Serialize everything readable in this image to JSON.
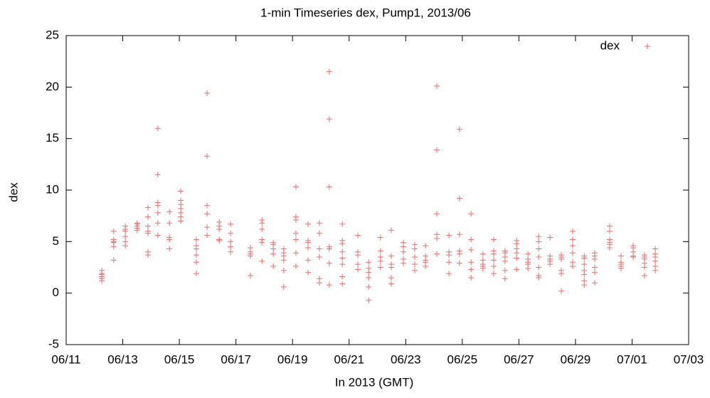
{
  "chart_data": {
    "type": "scatter",
    "title": "1-min Timeseries dex, Pump1, 2013/06",
    "x_label": "In 2013 (GMT)",
    "y_label": "dex",
    "xlim": [
      11,
      33
    ],
    "xticks": [
      {
        "value": 11,
        "label": "06/11"
      },
      {
        "value": 13,
        "label": "06/13"
      },
      {
        "value": 15,
        "label": "06/15"
      },
      {
        "value": 17,
        "label": "06/17"
      },
      {
        "value": 19,
        "label": "06/19"
      },
      {
        "value": 21,
        "label": "06/21"
      },
      {
        "value": 23,
        "label": "06/23"
      },
      {
        "value": 25,
        "label": "06/25"
      },
      {
        "value": 27,
        "label": "06/27"
      },
      {
        "value": 29,
        "label": "06/29"
      },
      {
        "value": 31,
        "label": "07/01"
      },
      {
        "value": 33,
        "label": "07/03"
      }
    ],
    "ylim": [
      -5,
      25
    ],
    "yticks": [
      -5,
      0,
      5,
      10,
      15,
      20,
      25
    ],
    "legend": "top-right",
    "x": [
      12.26,
      12.26,
      12.26,
      12.26,
      12.26,
      12.26,
      12.68,
      12.68,
      12.68,
      12.68,
      12.68,
      12.68,
      13.09,
      13.09,
      13.09,
      13.09,
      13.09,
      13.09,
      13.51,
      13.51,
      13.51,
      13.51,
      13.51,
      13.89,
      13.89,
      13.89,
      13.89,
      13.89,
      13.89,
      13.89,
      14.24,
      14.24,
      14.24,
      14.24,
      14.24,
      14.24,
      14.24,
      14.65,
      14.65,
      14.65,
      14.65,
      14.65,
      15.05,
      15.05,
      15.05,
      15.05,
      15.05,
      15.05,
      15.05,
      15.6,
      15.6,
      15.6,
      15.6,
      15.6,
      15.6,
      15.98,
      15.98,
      15.98,
      15.98,
      15.98,
      15.98,
      16.41,
      16.41,
      16.41,
      16.41,
      16.41,
      16.81,
      16.81,
      16.81,
      16.81,
      16.81,
      17.51,
      17.51,
      17.51,
      17.51,
      17.51,
      17.92,
      17.92,
      17.92,
      17.92,
      17.92,
      17.92,
      18.32,
      18.32,
      18.32,
      18.32,
      18.32,
      18.69,
      18.69,
      18.69,
      18.69,
      18.69,
      18.69,
      19.12,
      19.12,
      19.12,
      19.12,
      19.12,
      19.12,
      19.12,
      19.55,
      19.55,
      19.55,
      19.55,
      19.55,
      19.55,
      19.95,
      19.95,
      19.95,
      19.95,
      19.95,
      19.95,
      20.3,
      20.3,
      20.3,
      20.3,
      20.3,
      20.3,
      20.3,
      20.76,
      20.76,
      20.76,
      20.76,
      20.76,
      20.76,
      20.76,
      20.76,
      21.31,
      21.31,
      21.31,
      21.31,
      21.31,
      21.69,
      21.69,
      21.69,
      21.69,
      21.69,
      21.69,
      22.11,
      22.11,
      22.11,
      22.11,
      22.11,
      22.49,
      22.49,
      22.49,
      22.49,
      22.49,
      22.49,
      22.92,
      22.92,
      22.92,
      22.92,
      22.92,
      23.32,
      23.32,
      23.32,
      23.32,
      23.32,
      23.7,
      23.7,
      23.7,
      23.7,
      23.7,
      24.1,
      24.1,
      24.1,
      24.1,
      24.1,
      24.1,
      24.53,
      24.53,
      24.53,
      24.53,
      24.53,
      24.9,
      24.9,
      24.9,
      24.9,
      24.9,
      24.9,
      25.31,
      25.31,
      25.31,
      25.31,
      25.31,
      25.31,
      25.73,
      25.73,
      25.73,
      25.73,
      25.73,
      26.11,
      26.11,
      26.11,
      26.11,
      26.11,
      26.11,
      26.51,
      26.51,
      26.51,
      26.51,
      26.51,
      26.51,
      26.92,
      26.92,
      26.92,
      26.92,
      26.92,
      26.92,
      27.32,
      27.32,
      27.32,
      27.32,
      27.32,
      27.7,
      27.7,
      27.7,
      27.7,
      27.7,
      27.7,
      27.7,
      28.1,
      28.1,
      28.1,
      28.1,
      28.1,
      28.5,
      28.5,
      28.5,
      28.5,
      28.5,
      28.5,
      28.9,
      28.9,
      28.9,
      28.9,
      28.9,
      28.9,
      29.31,
      29.31,
      29.31,
      29.31,
      29.31,
      29.31,
      29.31,
      29.68,
      29.68,
      29.68,
      29.68,
      29.68,
      29.68,
      30.21,
      30.21,
      30.21,
      30.21,
      30.21,
      30.21,
      30.61,
      30.61,
      30.61,
      30.61,
      30.61,
      31.04,
      31.04,
      31.04,
      31.04,
      31.04,
      31.44,
      31.44,
      31.44,
      31.44,
      31.44,
      31.44,
      31.82,
      31.82,
      31.82,
      31.82,
      31.82,
      31.82
    ],
    "series": [
      {
        "name": "dex",
        "color": "#f26a6a",
        "values": [
          2.2,
          1.9,
          1.6,
          1.4,
          1.2,
          1.8,
          6.0,
          5.2,
          4.9,
          4.5,
          3.2,
          5.0,
          6.5,
          6.0,
          5.5,
          5.0,
          4.6,
          6.2,
          6.8,
          6.5,
          6.3,
          6.1,
          6.7,
          8.3,
          6.5,
          6.0,
          5.8,
          4.0,
          3.7,
          7.4,
          16.0,
          11.5,
          8.8,
          8.5,
          7.8,
          6.8,
          5.6,
          7.9,
          6.8,
          5.4,
          5.2,
          4.3,
          9.9,
          9.0,
          8.6,
          8.2,
          7.8,
          7.4,
          7.0,
          5.2,
          4.6,
          4.3,
          3.7,
          3.0,
          1.9,
          19.4,
          13.3,
          8.5,
          7.7,
          6.4,
          5.6,
          6.9,
          6.5,
          6.2,
          5.2,
          5.1,
          6.7,
          5.8,
          5.0,
          4.5,
          4.0,
          4.4,
          4.0,
          3.8,
          3.6,
          1.7,
          7.1,
          6.8,
          6.2,
          5.2,
          4.9,
          3.1,
          4.9,
          4.7,
          4.3,
          3.8,
          2.6,
          4.3,
          3.9,
          3.6,
          3.2,
          2.2,
          0.6,
          10.3,
          7.4,
          7.1,
          5.8,
          5.2,
          3.9,
          2.6,
          6.7,
          5.1,
          4.9,
          4.4,
          3.2,
          2.0,
          6.8,
          5.8,
          4.3,
          3.5,
          1.4,
          1.0,
          21.5,
          16.9,
          10.3,
          4.5,
          4.3,
          2.9,
          0.8,
          6.7,
          5.1,
          4.8,
          4.0,
          3.4,
          2.8,
          1.6,
          0.9,
          5.6,
          4.0,
          3.7,
          2.8,
          2.3,
          3.0,
          2.4,
          2.0,
          1.5,
          0.6,
          -0.7,
          5.4,
          4.1,
          3.5,
          3.1,
          2.5,
          6.1,
          3.6,
          2.8,
          2.5,
          1.5,
          0.9,
          4.9,
          4.5,
          4.0,
          3.3,
          2.9,
          4.7,
          4.3,
          3.5,
          2.8,
          2.2,
          4.6,
          3.6,
          3.2,
          3.0,
          2.6,
          20.1,
          13.9,
          7.7,
          5.7,
          5.3,
          3.8,
          5.6,
          4.0,
          3.7,
          3.0,
          1.9,
          15.9,
          9.2,
          5.7,
          4.1,
          3.8,
          2.9,
          7.7,
          5.2,
          4.2,
          3.0,
          2.3,
          1.5,
          3.8,
          3.2,
          2.8,
          2.6,
          2.4,
          5.2,
          4.1,
          3.8,
          3.2,
          2.6,
          1.9,
          4.1,
          3.9,
          3.5,
          3.1,
          2.2,
          1.4,
          5.1,
          4.8,
          4.3,
          3.9,
          3.4,
          2.3,
          3.8,
          3.3,
          3.0,
          2.8,
          2.4,
          5.5,
          5.0,
          4.3,
          3.5,
          2.5,
          1.7,
          1.5,
          5.4,
          3.6,
          3.3,
          3.1,
          2.8,
          3.7,
          3.5,
          3.3,
          2.2,
          1.9,
          0.2,
          6.0,
          5.2,
          4.6,
          3.9,
          3.0,
          2.6,
          3.6,
          3.4,
          2.8,
          2.2,
          1.8,
          1.2,
          0.8,
          3.9,
          3.6,
          3.3,
          2.5,
          2.0,
          1.0,
          6.5,
          6.0,
          5.2,
          4.9,
          4.7,
          4.4,
          3.6,
          3.0,
          2.8,
          2.6,
          2.4,
          4.6,
          4.4,
          4.0,
          3.6,
          3.5,
          3.7,
          3.5,
          3.3,
          2.9,
          2.5,
          1.7,
          4.3,
          3.8,
          3.5,
          3.1,
          2.6,
          2.2
        ]
      }
    ]
  }
}
